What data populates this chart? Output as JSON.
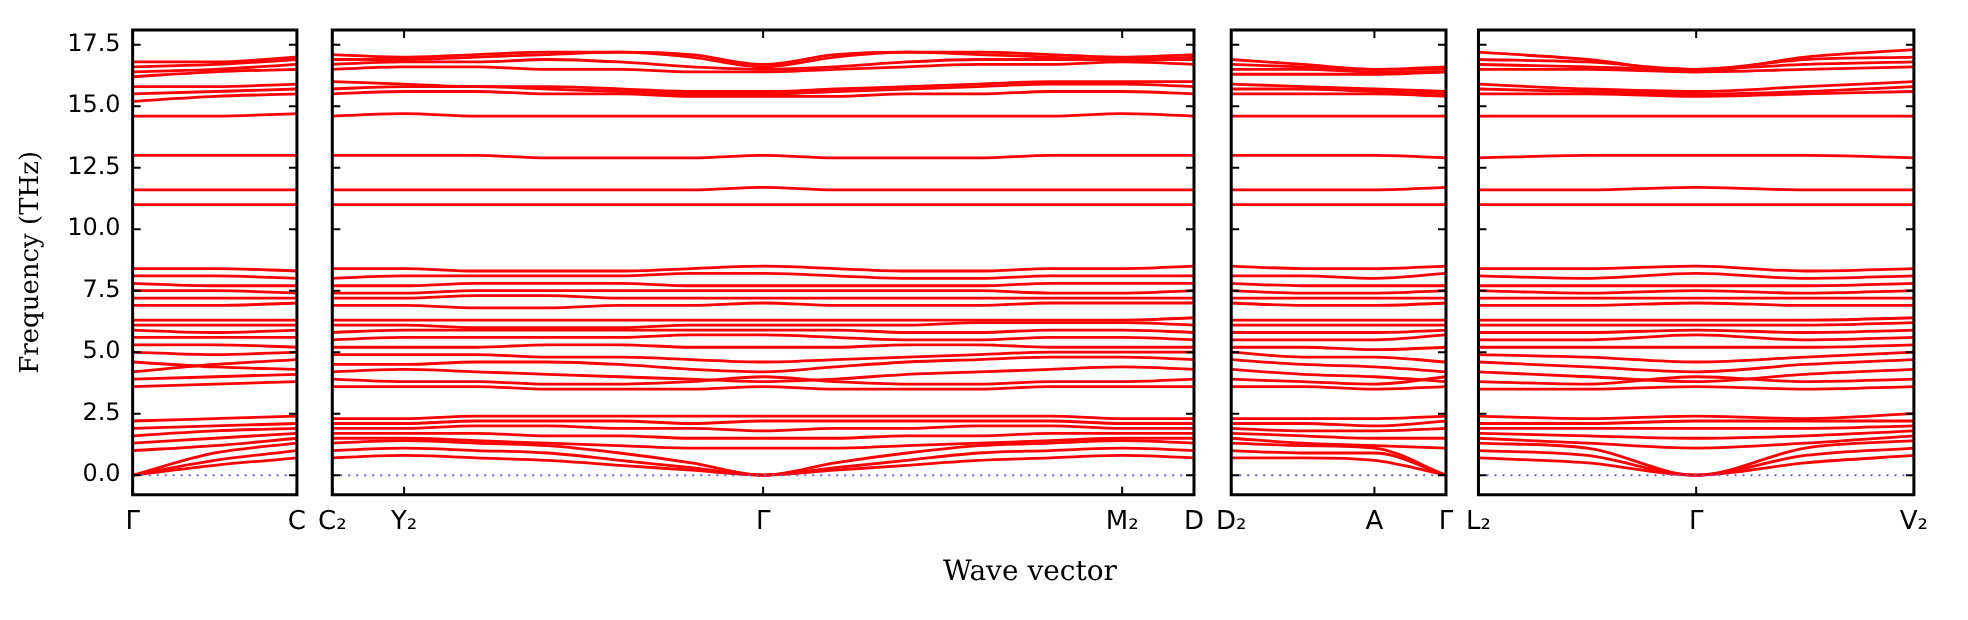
{
  "chart_data": [
    {
      "type": "line",
      "ylabel": "Frequency (THz)",
      "color": "#ff0000",
      "legend": false,
      "grid": false,
      "ylim": [
        -0.8,
        18.1
      ],
      "yticks": [
        {
          "value": 0,
          "label": "0.0"
        },
        {
          "value": 2.5,
          "label": "2.5"
        },
        {
          "value": 5,
          "label": "5.0"
        },
        {
          "value": 7.5,
          "label": "7.5"
        },
        {
          "value": 10,
          "label": "10.0"
        },
        {
          "value": 12.5,
          "label": "12.5"
        },
        {
          "value": 15,
          "label": "15.0"
        },
        {
          "value": 17.5,
          "label": "17.5"
        }
      ],
      "categories": [
        "Γ",
        null,
        "C"
      ],
      "ref_lines": [
        {
          "axis": "y",
          "value": 0,
          "color": "#6060ff",
          "line_style": "dotted"
        }
      ],
      "series": [
        {
          "values": [
            0,
            0.4,
            0.7
          ]
        },
        {
          "values": [
            0,
            0.6,
            1.0
          ]
        },
        {
          "values": [
            0,
            0.9,
            1.3
          ]
        },
        {
          "values": [
            1.0,
            1.2,
            1.5
          ]
        },
        {
          "values": [
            1.3,
            1.5,
            1.7
          ]
        },
        {
          "values": [
            1.6,
            1.8,
            1.9
          ]
        },
        {
          "values": [
            1.9,
            2.0,
            2.1
          ]
        },
        {
          "values": [
            2.2,
            2.3,
            2.4
          ]
        },
        {
          "values": [
            3.6,
            3.7,
            3.8
          ]
        },
        {
          "values": [
            3.9,
            4.0,
            4.1
          ]
        },
        {
          "values": [
            4.2,
            4.5,
            4.7
          ]
        },
        {
          "values": [
            4.6,
            4.4,
            4.3
          ]
        },
        {
          "values": [
            5.0,
            4.9,
            5.0
          ]
        },
        {
          "values": [
            5.3,
            5.3,
            5.2
          ]
        },
        {
          "values": [
            5.6,
            5.6,
            5.6
          ]
        },
        {
          "values": [
            5.9,
            5.8,
            5.9
          ]
        },
        {
          "values": [
            6.1,
            6.1,
            6.1
          ]
        },
        {
          "values": [
            6.3,
            6.3,
            6.3
          ]
        },
        {
          "values": [
            6.9,
            6.9,
            7.0
          ]
        },
        {
          "values": [
            7.2,
            7.2,
            7.2
          ]
        },
        {
          "values": [
            7.5,
            7.5,
            7.4
          ]
        },
        {
          "values": [
            7.8,
            7.7,
            7.7
          ]
        },
        {
          "values": [
            8.1,
            8.1,
            8.0
          ]
        },
        {
          "values": [
            8.4,
            8.4,
            8.3
          ]
        },
        {
          "values": [
            11.0,
            11.0,
            11.0
          ]
        },
        {
          "values": [
            11.6,
            11.6,
            11.6
          ]
        },
        {
          "values": [
            13.0,
            13.0,
            13.0
          ]
        },
        {
          "values": [
            14.6,
            14.6,
            14.7
          ]
        },
        {
          "values": [
            15.2,
            15.4,
            15.5
          ]
        },
        {
          "values": [
            15.5,
            15.6,
            15.7
          ]
        },
        {
          "values": [
            15.8,
            15.8,
            15.9
          ]
        },
        {
          "values": [
            16.2,
            16.4,
            16.5
          ]
        },
        {
          "values": [
            16.4,
            16.5,
            16.7
          ]
        },
        {
          "values": [
            16.6,
            16.7,
            16.9
          ]
        },
        {
          "values": [
            16.8,
            16.8,
            17.0
          ]
        }
      ]
    },
    {
      "type": "line",
      "xlabel": "Wave vector",
      "color": "#ff0000",
      "legend": false,
      "grid": false,
      "tick_labels": "x",
      "ylim": [
        -0.8,
        18.1
      ],
      "yticks": [
        {
          "value": 0,
          "label": null
        },
        {
          "value": 2.5,
          "label": null
        },
        {
          "value": 5,
          "label": null
        },
        {
          "value": 7.5,
          "label": null
        },
        {
          "value": 10,
          "label": null
        },
        {
          "value": 12.5,
          "label": null
        },
        {
          "value": 15,
          "label": null
        },
        {
          "value": 17.5,
          "label": null
        }
      ],
      "categories": [
        "C₂",
        "Y₂",
        null,
        null,
        null,
        null,
        "Γ",
        null,
        null,
        null,
        null,
        "M₂",
        "D"
      ],
      "ref_lines": [
        {
          "axis": "y",
          "value": 0,
          "color": "#6060ff",
          "line_style": "dotted"
        }
      ],
      "series": [
        {
          "values": [
            0.7,
            0.8,
            0.7,
            0.6,
            0.4,
            0.2,
            0,
            0.2,
            0.4,
            0.6,
            0.7,
            0.8,
            0.7
          ]
        },
        {
          "values": [
            1.0,
            1.1,
            1.0,
            0.9,
            0.6,
            0.3,
            0,
            0.3,
            0.6,
            0.9,
            1.0,
            1.1,
            1.0
          ]
        },
        {
          "values": [
            1.3,
            1.4,
            1.3,
            1.2,
            0.9,
            0.5,
            0,
            0.5,
            0.9,
            1.2,
            1.3,
            1.4,
            1.3
          ]
        },
        {
          "values": [
            1.5,
            1.5,
            1.4,
            1.3,
            1.2,
            1.1,
            1.1,
            1.1,
            1.2,
            1.3,
            1.4,
            1.5,
            1.5
          ]
        },
        {
          "values": [
            1.7,
            1.7,
            1.7,
            1.6,
            1.6,
            1.5,
            1.5,
            1.5,
            1.6,
            1.6,
            1.7,
            1.7,
            1.7
          ]
        },
        {
          "values": [
            1.9,
            1.9,
            2.0,
            2.0,
            1.9,
            1.9,
            1.8,
            1.9,
            1.9,
            2.0,
            2.0,
            1.9,
            1.9
          ]
        },
        {
          "values": [
            2.1,
            2.1,
            2.2,
            2.2,
            2.2,
            2.1,
            2.2,
            2.2,
            2.2,
            2.2,
            2.2,
            2.1,
            2.1
          ]
        },
        {
          "values": [
            2.3,
            2.3,
            2.4,
            2.4,
            2.4,
            2.4,
            2.4,
            2.4,
            2.4,
            2.4,
            2.4,
            2.3,
            2.3
          ]
        },
        {
          "values": [
            3.6,
            3.6,
            3.6,
            3.5,
            3.5,
            3.5,
            3.6,
            3.5,
            3.5,
            3.5,
            3.6,
            3.6,
            3.6
          ]
        },
        {
          "values": [
            3.9,
            3.8,
            3.8,
            3.7,
            3.7,
            3.8,
            4.0,
            3.8,
            3.7,
            3.7,
            3.8,
            3.8,
            3.9
          ]
        },
        {
          "values": [
            4.2,
            4.3,
            4.2,
            4.1,
            4.0,
            3.9,
            3.8,
            3.9,
            4.1,
            4.2,
            4.3,
            4.4,
            4.3
          ]
        },
        {
          "values": [
            4.5,
            4.5,
            4.6,
            4.6,
            4.5,
            4.3,
            4.2,
            4.4,
            4.6,
            4.7,
            4.8,
            4.8,
            4.7
          ]
        },
        {
          "values": [
            4.9,
            4.9,
            4.9,
            4.8,
            4.8,
            4.7,
            4.6,
            4.7,
            4.8,
            4.9,
            5.0,
            5.0,
            5.0
          ]
        },
        {
          "values": [
            5.2,
            5.2,
            5.2,
            5.3,
            5.3,
            5.2,
            5.2,
            5.2,
            5.3,
            5.3,
            5.2,
            5.2,
            5.2
          ]
        },
        {
          "values": [
            5.5,
            5.6,
            5.6,
            5.6,
            5.6,
            5.7,
            5.7,
            5.6,
            5.5,
            5.5,
            5.6,
            5.6,
            5.5
          ]
        },
        {
          "values": [
            5.8,
            5.9,
            5.9,
            5.9,
            5.9,
            5.9,
            5.9,
            5.9,
            5.8,
            5.8,
            5.9,
            5.9,
            5.8
          ]
        },
        {
          "values": [
            6.1,
            6.1,
            6.0,
            6.0,
            6.0,
            6.1,
            6.1,
            6.1,
            6.1,
            6.2,
            6.2,
            6.2,
            6.1
          ]
        },
        {
          "values": [
            6.3,
            6.3,
            6.3,
            6.3,
            6.3,
            6.3,
            6.3,
            6.3,
            6.3,
            6.3,
            6.3,
            6.3,
            6.4
          ]
        },
        {
          "values": [
            6.9,
            6.9,
            6.8,
            6.8,
            6.9,
            6.9,
            7.0,
            6.9,
            6.9,
            6.9,
            7.0,
            7.0,
            7.0
          ]
        },
        {
          "values": [
            7.2,
            7.2,
            7.3,
            7.3,
            7.2,
            7.2,
            7.2,
            7.2,
            7.2,
            7.2,
            7.2,
            7.2,
            7.2
          ]
        },
        {
          "values": [
            7.4,
            7.4,
            7.5,
            7.5,
            7.5,
            7.5,
            7.5,
            7.5,
            7.5,
            7.5,
            7.4,
            7.4,
            7.5
          ]
        },
        {
          "values": [
            7.7,
            7.7,
            7.8,
            7.8,
            7.8,
            7.7,
            7.7,
            7.7,
            7.7,
            7.7,
            7.8,
            7.8,
            7.8
          ]
        },
        {
          "values": [
            8.0,
            8.1,
            8.1,
            8.1,
            8.1,
            8.2,
            8.2,
            8.1,
            8.0,
            8.0,
            8.1,
            8.1,
            8.1
          ]
        },
        {
          "values": [
            8.4,
            8.4,
            8.3,
            8.3,
            8.3,
            8.4,
            8.5,
            8.4,
            8.3,
            8.3,
            8.4,
            8.4,
            8.5
          ]
        },
        {
          "values": [
            11.0,
            11.0,
            11.0,
            11.0,
            11.0,
            11.0,
            11.0,
            11.0,
            11.0,
            11.0,
            11.0,
            11.0,
            11.0
          ]
        },
        {
          "values": [
            11.6,
            11.6,
            11.6,
            11.6,
            11.6,
            11.6,
            11.7,
            11.6,
            11.6,
            11.6,
            11.6,
            11.6,
            11.6
          ]
        },
        {
          "values": [
            13.0,
            13.0,
            13.0,
            12.9,
            12.9,
            12.9,
            13.0,
            12.9,
            12.9,
            12.9,
            13.0,
            13.0,
            13.0
          ]
        },
        {
          "values": [
            14.6,
            14.7,
            14.6,
            14.6,
            14.6,
            14.6,
            14.6,
            14.6,
            14.6,
            14.6,
            14.6,
            14.7,
            14.6
          ]
        },
        {
          "values": [
            15.5,
            15.6,
            15.6,
            15.5,
            15.5,
            15.4,
            15.4,
            15.4,
            15.5,
            15.5,
            15.6,
            15.6,
            15.5
          ]
        },
        {
          "values": [
            15.7,
            15.8,
            15.8,
            15.7,
            15.6,
            15.5,
            15.5,
            15.6,
            15.7,
            15.8,
            15.9,
            15.9,
            15.8
          ]
        },
        {
          "values": [
            16.0,
            15.9,
            15.8,
            15.8,
            15.7,
            15.6,
            15.6,
            15.7,
            15.8,
            15.9,
            16.0,
            16.0,
            16.0
          ]
        },
        {
          "values": [
            16.5,
            16.6,
            16.6,
            16.5,
            16.5,
            16.4,
            16.4,
            16.5,
            16.6,
            16.7,
            16.7,
            16.8,
            16.7
          ]
        },
        {
          "values": [
            16.7,
            16.8,
            16.8,
            16.9,
            16.8,
            16.6,
            16.5,
            16.6,
            16.8,
            16.9,
            16.9,
            16.9,
            16.9
          ]
        },
        {
          "values": [
            16.9,
            16.9,
            17.0,
            17.1,
            17.2,
            17.0,
            16.6,
            17.0,
            17.2,
            17.1,
            17.0,
            16.9,
            17.0
          ]
        },
        {
          "values": [
            17.1,
            17.0,
            17.1,
            17.2,
            17.2,
            17.1,
            16.7,
            17.1,
            17.2,
            17.2,
            17.1,
            17.0,
            17.1
          ]
        }
      ]
    },
    {
      "type": "line",
      "color": "#ff0000",
      "legend": false,
      "grid": false,
      "tick_labels": "x",
      "ylim": [
        -0.8,
        18.1
      ],
      "yticks": [
        {
          "value": 0,
          "label": null
        },
        {
          "value": 2.5,
          "label": null
        },
        {
          "value": 5,
          "label": null
        },
        {
          "value": 7.5,
          "label": null
        },
        {
          "value": 10,
          "label": null
        },
        {
          "value": 12.5,
          "label": null
        },
        {
          "value": 15,
          "label": null
        },
        {
          "value": 17.5,
          "label": null
        }
      ],
      "categories": [
        "D₂",
        null,
        "A",
        "Γ"
      ],
      "ref_lines": [
        {
          "axis": "y",
          "value": 0,
          "color": "#6060ff",
          "line_style": "dotted"
        }
      ],
      "series": [
        {
          "values": [
            0.7,
            0.7,
            0.6,
            0
          ]
        },
        {
          "values": [
            1.0,
            0.9,
            0.9,
            0
          ]
        },
        {
          "values": [
            1.3,
            1.2,
            1.1,
            0
          ]
        },
        {
          "values": [
            1.5,
            1.3,
            1.2,
            1.1
          ]
        },
        {
          "values": [
            1.7,
            1.6,
            1.5,
            1.5
          ]
        },
        {
          "values": [
            1.9,
            1.8,
            1.8,
            1.9
          ]
        },
        {
          "values": [
            2.1,
            2.1,
            2.0,
            2.2
          ]
        },
        {
          "values": [
            2.3,
            2.3,
            2.3,
            2.4
          ]
        },
        {
          "values": [
            3.6,
            3.6,
            3.5,
            3.6
          ]
        },
        {
          "values": [
            3.9,
            3.8,
            3.7,
            4.0
          ]
        },
        {
          "values": [
            4.3,
            4.1,
            4.0,
            3.8
          ]
        },
        {
          "values": [
            4.7,
            4.5,
            4.4,
            4.2
          ]
        },
        {
          "values": [
            5.0,
            4.8,
            4.8,
            4.6
          ]
        },
        {
          "values": [
            5.2,
            5.2,
            5.1,
            5.2
          ]
        },
        {
          "values": [
            5.5,
            5.5,
            5.5,
            5.7
          ]
        },
        {
          "values": [
            5.8,
            5.8,
            5.8,
            5.9
          ]
        },
        {
          "values": [
            6.1,
            6.1,
            6.1,
            6.1
          ]
        },
        {
          "values": [
            6.3,
            6.3,
            6.3,
            6.3
          ]
        },
        {
          "values": [
            7.0,
            6.9,
            6.9,
            7.0
          ]
        },
        {
          "values": [
            7.2,
            7.2,
            7.2,
            7.2
          ]
        },
        {
          "values": [
            7.5,
            7.4,
            7.4,
            7.5
          ]
        },
        {
          "values": [
            7.8,
            7.7,
            7.7,
            7.7
          ]
        },
        {
          "values": [
            8.1,
            8.1,
            8.0,
            8.2
          ]
        },
        {
          "values": [
            8.5,
            8.4,
            8.4,
            8.5
          ]
        },
        {
          "values": [
            11.0,
            11.0,
            11.0,
            11.0
          ]
        },
        {
          "values": [
            11.6,
            11.6,
            11.6,
            11.7
          ]
        },
        {
          "values": [
            13.0,
            13.0,
            13.0,
            12.9
          ]
        },
        {
          "values": [
            14.6,
            14.6,
            14.6,
            14.6
          ]
        },
        {
          "values": [
            15.5,
            15.5,
            15.5,
            15.4
          ]
        },
        {
          "values": [
            15.7,
            15.7,
            15.6,
            15.5
          ]
        },
        {
          "values": [
            15.9,
            15.8,
            15.7,
            15.6
          ]
        },
        {
          "values": [
            16.3,
            16.3,
            16.3,
            16.4
          ]
        },
        {
          "values": [
            16.5,
            16.5,
            16.4,
            16.4
          ]
        },
        {
          "values": [
            16.7,
            16.6,
            16.5,
            16.5
          ]
        },
        {
          "values": [
            16.9,
            16.7,
            16.5,
            16.6
          ]
        }
      ]
    },
    {
      "type": "line",
      "color": "#ff0000",
      "legend": false,
      "grid": false,
      "tick_labels": "x",
      "ylim": [
        -0.8,
        18.1
      ],
      "yticks": [
        {
          "value": 0,
          "label": null
        },
        {
          "value": 2.5,
          "label": null
        },
        {
          "value": 5,
          "label": null
        },
        {
          "value": 7.5,
          "label": null
        },
        {
          "value": 10,
          "label": null
        },
        {
          "value": 12.5,
          "label": null
        },
        {
          "value": 15,
          "label": null
        },
        {
          "value": 17.5,
          "label": null
        }
      ],
      "categories": [
        "L₂",
        null,
        "Γ",
        null,
        "V₂"
      ],
      "ref_lines": [
        {
          "axis": "y",
          "value": 0,
          "color": "#6060ff",
          "line_style": "dotted"
        }
      ],
      "series": [
        {
          "values": [
            0.7,
            0.5,
            0,
            0.5,
            0.8
          ]
        },
        {
          "values": [
            1.0,
            0.8,
            0,
            0.8,
            1.1
          ]
        },
        {
          "values": [
            1.3,
            1.1,
            0,
            1.1,
            1.4
          ]
        },
        {
          "values": [
            1.5,
            1.3,
            1.1,
            1.3,
            1.6
          ]
        },
        {
          "values": [
            1.7,
            1.6,
            1.5,
            1.6,
            1.8
          ]
        },
        {
          "values": [
            1.9,
            1.9,
            1.9,
            1.9,
            2.0
          ]
        },
        {
          "values": [
            2.1,
            2.1,
            2.2,
            2.2,
            2.2
          ]
        },
        {
          "values": [
            2.4,
            2.3,
            2.4,
            2.3,
            2.5
          ]
        },
        {
          "values": [
            3.5,
            3.5,
            3.6,
            3.5,
            3.6
          ]
        },
        {
          "values": [
            3.8,
            3.7,
            4.0,
            3.8,
            3.9
          ]
        },
        {
          "values": [
            4.2,
            4.0,
            3.8,
            4.1,
            4.3
          ]
        },
        {
          "values": [
            4.6,
            4.4,
            4.2,
            4.5,
            4.7
          ]
        },
        {
          "values": [
            4.9,
            4.8,
            4.6,
            4.8,
            5.0
          ]
        },
        {
          "values": [
            5.2,
            5.2,
            5.2,
            5.2,
            5.3
          ]
        },
        {
          "values": [
            5.5,
            5.5,
            5.7,
            5.5,
            5.6
          ]
        },
        {
          "values": [
            5.8,
            5.8,
            5.9,
            5.8,
            5.9
          ]
        },
        {
          "values": [
            6.1,
            6.1,
            6.1,
            6.1,
            6.2
          ]
        },
        {
          "values": [
            6.3,
            6.3,
            6.3,
            6.3,
            6.4
          ]
        },
        {
          "values": [
            6.9,
            6.9,
            7.0,
            6.9,
            6.9
          ]
        },
        {
          "values": [
            7.2,
            7.2,
            7.2,
            7.2,
            7.2
          ]
        },
        {
          "values": [
            7.5,
            7.4,
            7.5,
            7.4,
            7.5
          ]
        },
        {
          "values": [
            7.7,
            7.7,
            7.7,
            7.7,
            7.8
          ]
        },
        {
          "values": [
            8.1,
            8.0,
            8.2,
            8.0,
            8.1
          ]
        },
        {
          "values": [
            8.4,
            8.4,
            8.5,
            8.3,
            8.4
          ]
        },
        {
          "values": [
            11.0,
            11.0,
            11.0,
            11.0,
            11.0
          ]
        },
        {
          "values": [
            11.6,
            11.6,
            11.7,
            11.6,
            11.6
          ]
        },
        {
          "values": [
            12.9,
            13.0,
            13.0,
            13.0,
            12.9
          ]
        },
        {
          "values": [
            14.6,
            14.6,
            14.6,
            14.6,
            14.6
          ]
        },
        {
          "values": [
            15.5,
            15.5,
            15.4,
            15.5,
            15.6
          ]
        },
        {
          "values": [
            15.7,
            15.6,
            15.5,
            15.6,
            15.8
          ]
        },
        {
          "values": [
            15.9,
            15.7,
            15.6,
            15.8,
            16.0
          ]
        },
        {
          "values": [
            16.5,
            16.5,
            16.4,
            16.5,
            16.6
          ]
        },
        {
          "values": [
            16.7,
            16.6,
            16.5,
            16.7,
            16.8
          ]
        },
        {
          "values": [
            16.9,
            16.8,
            16.5,
            16.9,
            17.0
          ]
        },
        {
          "values": [
            17.2,
            16.9,
            16.4,
            17.0,
            17.3
          ]
        }
      ]
    }
  ]
}
